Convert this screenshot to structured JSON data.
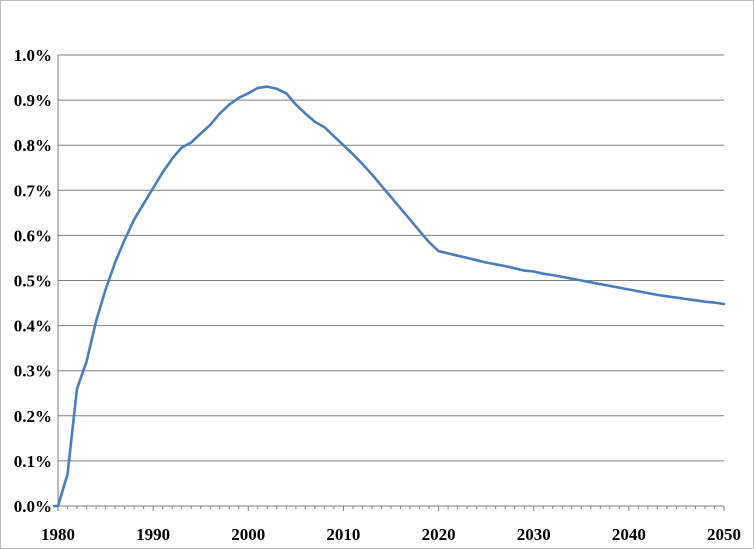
{
  "chart_data": {
    "type": "line",
    "title": "",
    "xlabel": "",
    "ylabel": "",
    "xlim": [
      1980,
      2050
    ],
    "ylim": [
      0.0,
      1.0
    ],
    "grid": true,
    "legend": "none",
    "x_ticks": [
      "1980",
      "1990",
      "2000",
      "2010",
      "2020",
      "2030",
      "2040",
      "2050"
    ],
    "y_ticks": [
      "0.0%",
      "0.1%",
      "0.2%",
      "0.3%",
      "0.4%",
      "0.5%",
      "0.6%",
      "0.7%",
      "0.8%",
      "0.9%",
      "1.0%"
    ],
    "colors": {
      "line": "#4a7ebb",
      "grid": "#7f7f7f",
      "axis": "#7f7f7f",
      "text": "#000000",
      "border": "#bdbdbd"
    },
    "series": [
      {
        "x": [
          1979,
          1980,
          1981,
          1982,
          1983,
          1984,
          1985,
          1986,
          1987,
          1988,
          1989,
          1990,
          1991,
          1992,
          1993,
          1994,
          1995,
          1996,
          1997,
          1998,
          1999,
          2000,
          2001,
          2002,
          2003,
          2004,
          2005,
          2006,
          2007,
          2008,
          2009,
          2010,
          2011,
          2012,
          2013,
          2014,
          2015,
          2016,
          2017,
          2018,
          2019,
          2020,
          2021,
          2022,
          2023,
          2024,
          2025,
          2026,
          2027,
          2028,
          2029,
          2030,
          2031,
          2032,
          2033,
          2034,
          2035,
          2036,
          2037,
          2038,
          2039,
          2040,
          2041,
          2042,
          2043,
          2044,
          2045,
          2046,
          2047,
          2048,
          2049,
          2050
        ],
        "values": [
          0.0,
          0.0,
          0.07,
          0.26,
          0.32,
          0.41,
          0.48,
          0.54,
          0.59,
          0.635,
          0.67,
          0.705,
          0.74,
          0.77,
          0.795,
          0.806,
          0.826,
          0.845,
          0.87,
          0.89,
          0.905,
          0.915,
          0.927,
          0.93,
          0.925,
          0.915,
          0.89,
          0.87,
          0.852,
          0.84,
          0.82,
          0.8,
          0.78,
          0.758,
          0.735,
          0.71,
          0.685,
          0.66,
          0.635,
          0.61,
          0.585,
          0.565,
          0.56,
          0.555,
          0.55,
          0.545,
          0.54,
          0.536,
          0.532,
          0.527,
          0.522,
          0.52,
          0.515,
          0.512,
          0.508,
          0.504,
          0.5,
          0.496,
          0.492,
          0.488,
          0.484,
          0.48,
          0.476,
          0.472,
          0.468,
          0.465,
          0.462,
          0.459,
          0.456,
          0.453,
          0.451,
          0.448
        ]
      }
    ]
  }
}
